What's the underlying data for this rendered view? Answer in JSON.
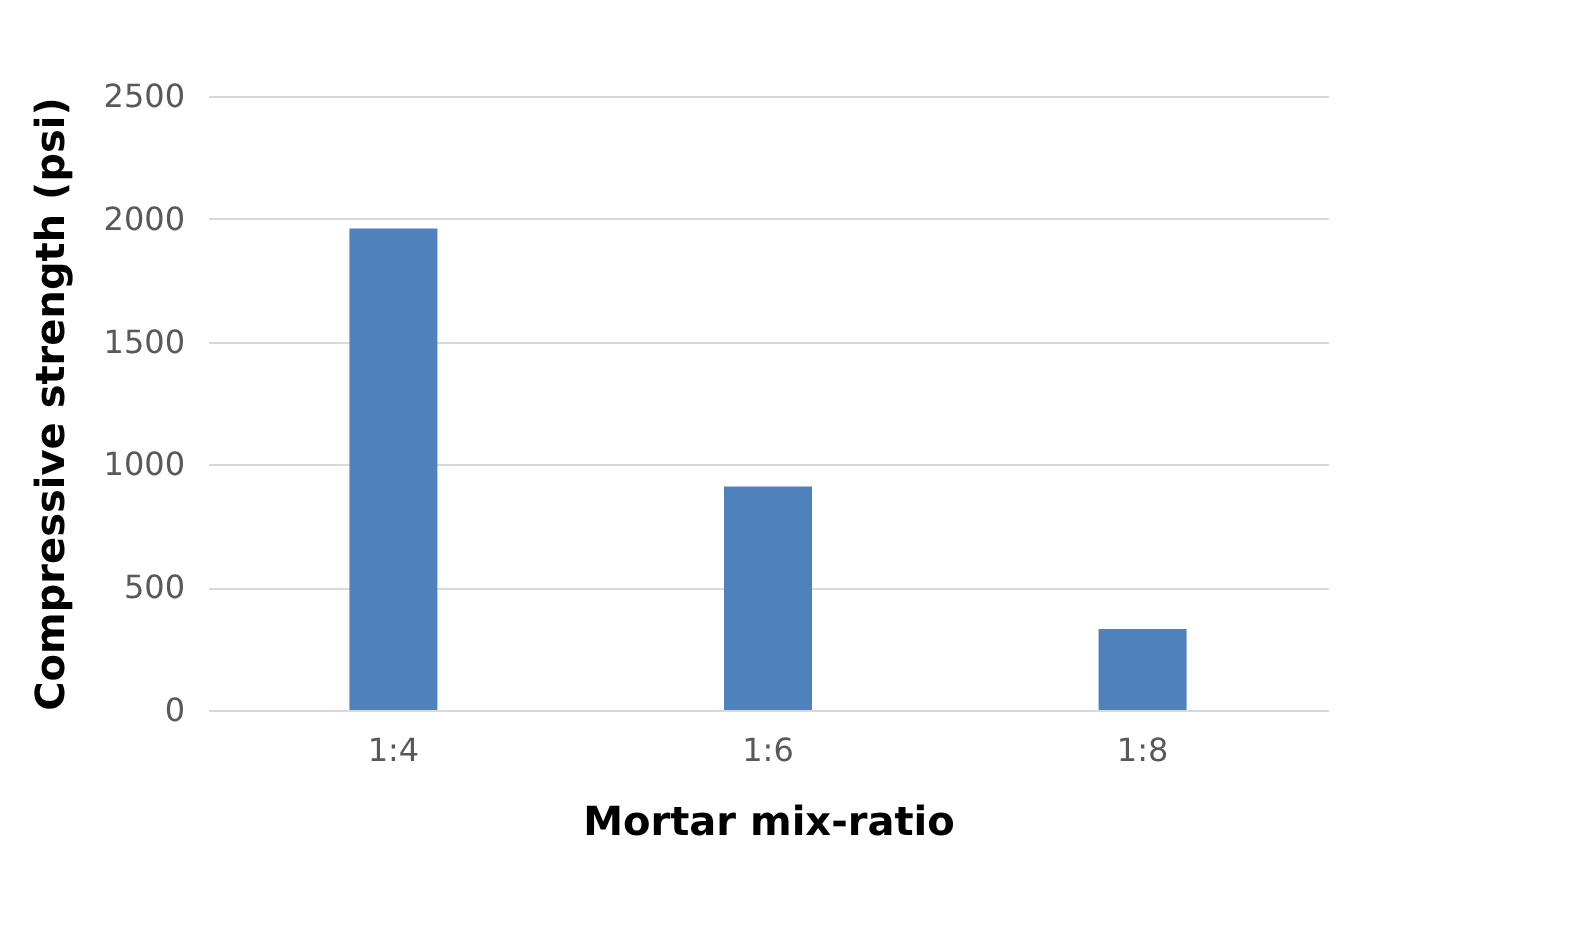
{
  "chart_data": {
    "type": "bar",
    "xlabel": "Mortar mix-ratio",
    "ylabel": "Compressive strength (psi)",
    "categories": [
      "1:4",
      "1:6",
      "1:8"
    ],
    "values": [
      1960,
      910,
      330
    ],
    "color": "#4f81bd",
    "ylim": [
      0,
      2500
    ],
    "yticks": [
      0,
      500,
      1000,
      1500,
      2000,
      2500
    ],
    "grid": "y"
  }
}
